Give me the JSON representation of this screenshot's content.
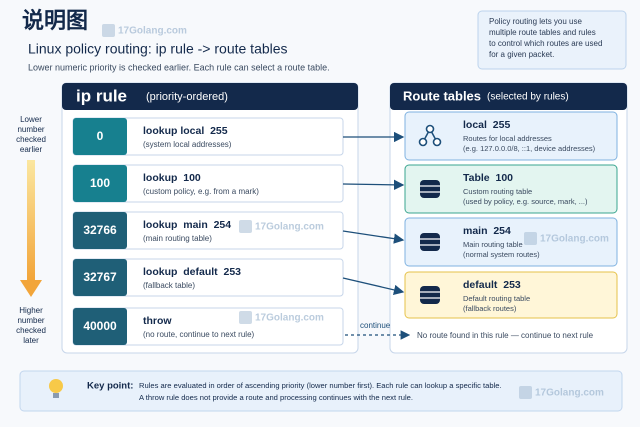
{
  "header": {
    "title": "说明图",
    "subtitle": "Linux policy routing: ip rule -> route tables",
    "description": "Lower numeric priority is checked earlier. Each rule can select a route table."
  },
  "note": [
    "Policy routing lets you use",
    "multiple route tables and rules",
    "to control which routes are used",
    "for a given packet."
  ],
  "order_hint": {
    "top": [
      "Lower",
      "number",
      "checked",
      "earlier"
    ],
    "bottom": [
      "Higher",
      "number",
      "checked",
      "later"
    ]
  },
  "ip_rule": {
    "title": "ip rule",
    "subtitle": "(priority-ordered)",
    "rules": [
      {
        "priority": 0,
        "action": "lookup local  255",
        "description": "(system local addresses)"
      },
      {
        "priority": 100,
        "action": "lookup  100",
        "description": "(custom policy, e.g. from a mark)"
      },
      {
        "priority": 32766,
        "action": "lookup  main  254",
        "description": "(main routing table)"
      },
      {
        "priority": 32767,
        "action": "lookup  default  253",
        "description": "(fallback table)"
      },
      {
        "priority": 40000,
        "action": "throw",
        "description": "(no route, continue to next rule)"
      }
    ]
  },
  "route_tables": {
    "title": "Route tables",
    "subtitle": "(selected by rules)",
    "tables": [
      {
        "name": "local  255",
        "description": [
          "Routes for local addresses",
          "(e.g. 127.0.0.0/8, ::1, device addresses)"
        ]
      },
      {
        "name": "Table  100",
        "description": [
          "Custom routing table",
          "(used by policy, e.g. source, mark, ...)"
        ]
      },
      {
        "name": "main  254",
        "description": [
          "Main routing table",
          "(normal system routes)"
        ]
      },
      {
        "name": "default  253",
        "description": [
          "Default routing table",
          "(fallback routes)"
        ]
      }
    ]
  },
  "continue_label": "continue",
  "no_route": "No route found in this rule — continue to next rule",
  "key_point": {
    "label": "Key point:",
    "text": [
      "Rules are evaluated in order of ascending priority (lower number first). Each rule can lookup a specific table.",
      "A throw rule does not provide a route and processing continues with the next rule."
    ]
  },
  "watermark": "17Golang.com"
}
